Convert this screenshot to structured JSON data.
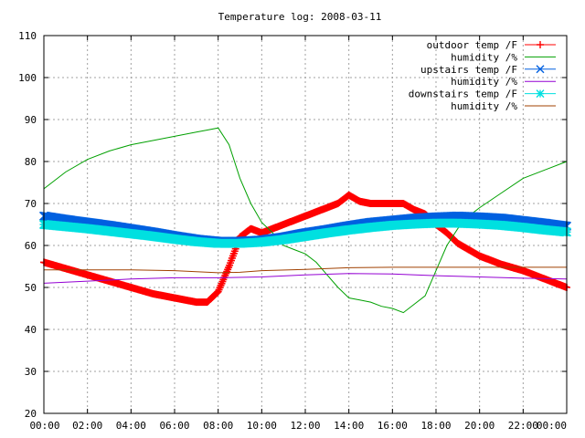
{
  "chart_data": {
    "type": "line",
    "title": "Temperature log: 2008-03-11",
    "xlabel": "",
    "ylabel": "",
    "x_ticks": [
      "00:00",
      "02:00",
      "04:00",
      "06:00",
      "08:00",
      "10:00",
      "12:00",
      "14:00",
      "16:00",
      "18:00",
      "20:00",
      "22:00",
      "00:00"
    ],
    "x_range_hours": [
      0,
      24
    ],
    "y_ticks": [
      20,
      30,
      40,
      50,
      60,
      70,
      80,
      90,
      100,
      110
    ],
    "ylim": [
      20,
      110
    ],
    "grid": true,
    "legend_position": "top-right",
    "series": [
      {
        "name": "outdoor temp /F",
        "color": "#ff0000",
        "marker": "plus",
        "x": [
          0,
          1,
          2,
          3,
          4,
          5,
          6,
          7,
          7.5,
          8,
          8.5,
          9,
          9.5,
          10,
          10.5,
          11,
          11.5,
          12,
          12.5,
          13,
          13.5,
          14,
          14.5,
          15,
          15.5,
          16,
          16.5,
          17,
          17.5,
          18,
          18.5,
          19,
          19.5,
          20,
          21,
          22,
          23,
          24
        ],
        "y": [
          56,
          54.5,
          53,
          51.5,
          50,
          48.5,
          47.5,
          46.5,
          46.5,
          49,
          55,
          62,
          64,
          63,
          64,
          65,
          66,
          67,
          68,
          69,
          70,
          72,
          70.5,
          70,
          70,
          70,
          70,
          68.5,
          67.5,
          65,
          63,
          60.5,
          59,
          57.5,
          55.5,
          54,
          52,
          50
        ]
      },
      {
        "name": "humidity /%",
        "color": "#00a000",
        "marker": "none",
        "x": [
          0,
          1,
          2,
          3,
          4,
          5,
          6,
          7,
          7.5,
          8,
          8.5,
          9,
          9.5,
          10,
          10.5,
          11,
          11.5,
          12,
          12.5,
          13,
          13.5,
          14,
          14.5,
          15,
          15.5,
          16,
          16.5,
          17,
          17.5,
          18,
          18.5,
          19,
          19.5,
          20,
          21,
          22,
          23,
          24
        ],
        "y": [
          73.5,
          77.5,
          80.5,
          82.5,
          84,
          85,
          86,
          87,
          87.5,
          88,
          84,
          76,
          70,
          65.5,
          63,
          60,
          59,
          58,
          56,
          53,
          50,
          47.5,
          47,
          46.5,
          45.5,
          45,
          44,
          46,
          48,
          54,
          60,
          64,
          67,
          69,
          72.5,
          76,
          78,
          80
        ]
      },
      {
        "name": "upstairs temp /F",
        "color": "#0060e0",
        "marker": "x",
        "x": [
          0,
          1,
          2,
          3,
          4,
          5,
          6,
          7,
          8,
          9,
          10,
          11,
          12,
          13,
          14,
          15,
          16,
          17,
          18,
          19,
          20,
          21,
          22,
          23,
          24
        ],
        "y": [
          67,
          66.2,
          65.5,
          64.8,
          64,
          63.2,
          62.3,
          61.5,
          61,
          61,
          61.3,
          62,
          63,
          63.8,
          64.7,
          65.5,
          66,
          66.5,
          66.8,
          67,
          66.8,
          66.5,
          65.9,
          65.3,
          64.6
        ]
      },
      {
        "name": "humidity /%",
        "color": "#9400d3",
        "marker": "none",
        "x": [
          0,
          2,
          4,
          6,
          8,
          10,
          12,
          14,
          16,
          18,
          20,
          22,
          24
        ],
        "y": [
          51,
          51.5,
          52,
          52.3,
          52.3,
          52.5,
          53,
          53.3,
          53.2,
          52.8,
          52.5,
          52.2,
          52
        ]
      },
      {
        "name": "downstairs temp /F",
        "color": "#00e0e0",
        "marker": "star",
        "x": [
          0,
          1,
          2,
          3,
          4,
          5,
          6,
          7,
          8,
          9,
          10,
          11,
          12,
          13,
          14,
          15,
          16,
          17,
          18,
          19,
          20,
          21,
          22,
          23,
          24
        ],
        "y": [
          65,
          64.5,
          64,
          63.4,
          62.8,
          62.2,
          61.5,
          60.9,
          60.5,
          60.5,
          60.8,
          61.4,
          62.2,
          63,
          63.7,
          64.3,
          64.8,
          65.1,
          65.3,
          65.3,
          65.1,
          64.8,
          64.3,
          63.7,
          63.2
        ]
      },
      {
        "name": "humidity /%",
        "color": "#a04000",
        "marker": "none",
        "x": [
          0,
          2,
          4,
          6,
          8,
          9,
          10,
          12,
          14,
          16,
          18,
          20,
          22,
          24
        ],
        "y": [
          54.2,
          54.2,
          54.2,
          54,
          53.5,
          53.6,
          54,
          54.3,
          54.7,
          54.8,
          54.8,
          54.8,
          54.8,
          54.8
        ]
      }
    ]
  }
}
